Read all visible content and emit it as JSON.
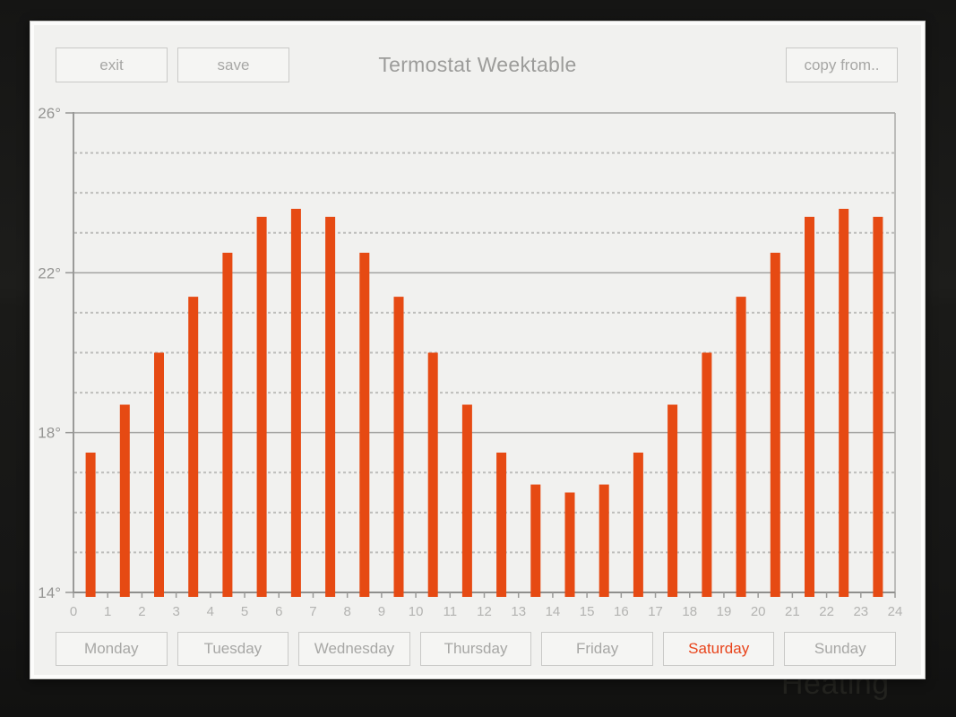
{
  "window": {
    "title": "Termostat Weektable",
    "background_watermark": "Heating"
  },
  "toolbar": {
    "exit": "exit",
    "save": "save",
    "copy_from": "copy from.."
  },
  "day_tabs": [
    {
      "label": "Monday",
      "active": false
    },
    {
      "label": "Tuesday",
      "active": false
    },
    {
      "label": "Wednesday",
      "active": false
    },
    {
      "label": "Thursday",
      "active": false
    },
    {
      "label": "Friday",
      "active": false
    },
    {
      "label": "Saturday",
      "active": true
    },
    {
      "label": "Sunday",
      "active": false
    }
  ],
  "chart_data": {
    "type": "bar",
    "title": "",
    "xlabel": "",
    "ylabel": "",
    "hours": [
      0,
      1,
      2,
      3,
      4,
      5,
      6,
      7,
      8,
      9,
      10,
      11,
      12,
      13,
      14,
      15,
      16,
      17,
      18,
      19,
      20,
      21,
      22,
      23
    ],
    "values": [
      17.5,
      18.7,
      20,
      21.4,
      22.5,
      23.4,
      23.6,
      23.4,
      22.5,
      21.4,
      20,
      18.7,
      17.5,
      16.7,
      16.5,
      16.7,
      17.5,
      18.7,
      20,
      21.4,
      22.5,
      23.4,
      23.6,
      23.4
    ],
    "xlim": [
      0,
      24
    ],
    "ylim": [
      14,
      26
    ],
    "x_tick_labels": [
      "0",
      "1",
      "2",
      "3",
      "4",
      "5",
      "6",
      "7",
      "8",
      "9",
      "10",
      "11",
      "12",
      "13",
      "14",
      "15",
      "16",
      "17",
      "18",
      "19",
      "20",
      "21",
      "22",
      "23",
      "24"
    ],
    "y_major_ticks": [
      14,
      18,
      22,
      26
    ],
    "y_tick_labels": [
      "14°",
      "18°",
      "22°",
      "26°"
    ],
    "y_minor_gridlines": [
      15,
      16,
      17,
      19,
      20,
      21,
      23,
      24,
      25
    ],
    "grid": true,
    "legend": false,
    "bar_color": "#e64a13"
  },
  "colors": {
    "accent_bar": "#e64a13",
    "active_day_text": "#e8431a",
    "panel_background": "#f1f1ef",
    "frame": "#fcfcfb",
    "button_border": "#c9c9c7",
    "muted_text": "#a7a7a5",
    "title_text": "#9c9c9a",
    "axis_line": "#9a9a98",
    "dashed_grid": "#bdbdbb",
    "x_label_text": "#b3b3b1",
    "y_label_text": "#949492",
    "background_dark": "#171716"
  }
}
